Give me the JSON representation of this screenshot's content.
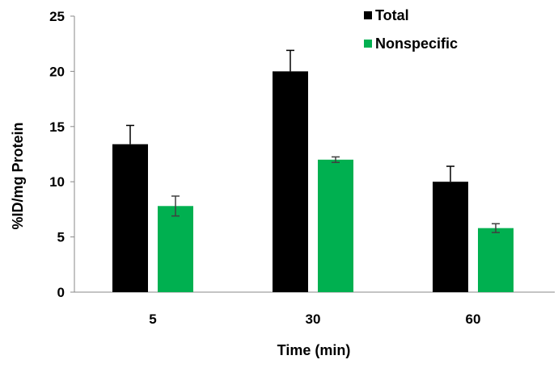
{
  "chart_data": {
    "type": "bar",
    "title": "",
    "xlabel": "Time (min)",
    "ylabel": "%ID/mg Protein",
    "categories": [
      "5",
      "30",
      "60"
    ],
    "ylim": [
      0,
      25
    ],
    "yticks": [
      "0",
      "5",
      "10",
      "15",
      "20",
      "25"
    ],
    "grid": false,
    "legend_position": "top-right",
    "series": [
      {
        "name": "Total",
        "color": "#000000",
        "values": [
          13.4,
          20.0,
          10.0
        ],
        "errors": [
          1.7,
          1.9,
          1.4
        ]
      },
      {
        "name": "Nonspecific",
        "color": "#00b050",
        "values": [
          7.8,
          12.0,
          5.8
        ],
        "errors": [
          0.9,
          0.25,
          0.4
        ]
      }
    ]
  }
}
